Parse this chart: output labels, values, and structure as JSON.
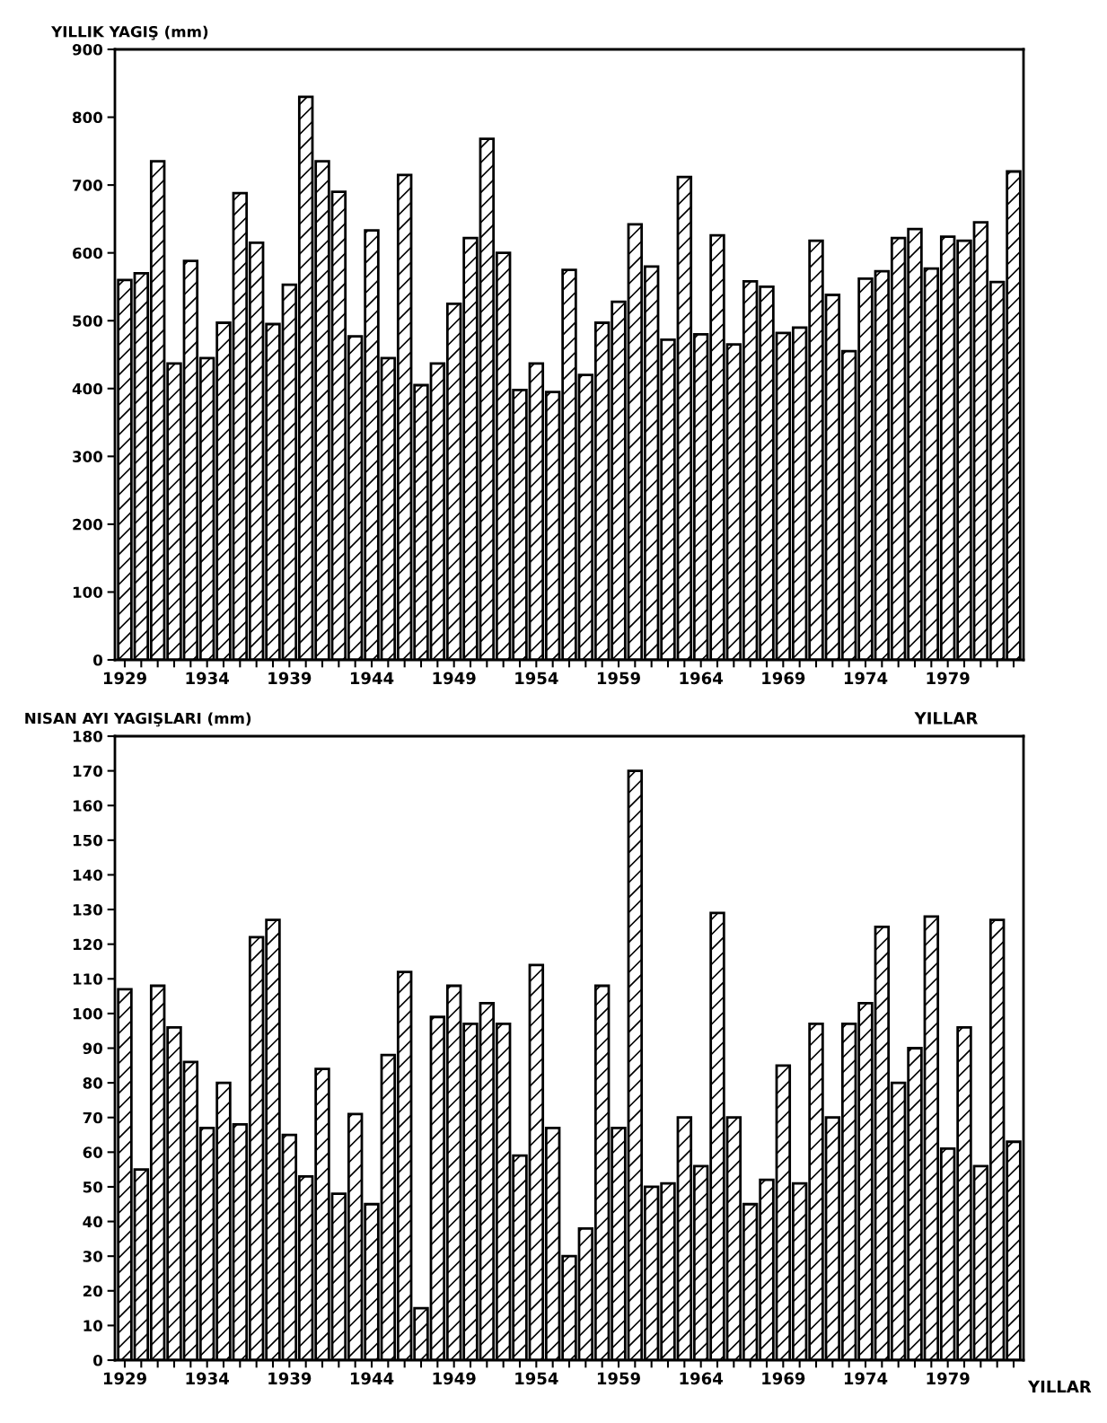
{
  "chart_data": [
    {
      "type": "bar",
      "ylabel": "YILLIK YAGIŞ (mm)",
      "xlabel": "YILLAR",
      "categories": [
        "1929",
        null,
        null,
        null,
        null,
        "1934",
        null,
        null,
        null,
        null,
        "1939",
        null,
        null,
        null,
        null,
        "1944",
        null,
        null,
        null,
        null,
        "1949",
        null,
        null,
        null,
        null,
        "1954",
        null,
        null,
        null,
        null,
        "1959",
        null,
        null,
        null,
        null,
        "1964",
        null,
        null,
        null,
        null,
        "1969",
        null,
        null,
        null,
        null,
        "1974",
        null,
        null,
        null,
        null,
        "1979",
        null,
        null,
        null,
        null
      ],
      "values": [
        560,
        570,
        735,
        437,
        588,
        445,
        497,
        688,
        615,
        495,
        553,
        830,
        735,
        690,
        477,
        633,
        445,
        715,
        405,
        437,
        525,
        622,
        768,
        600,
        398,
        437,
        395,
        575,
        420,
        497,
        528,
        642,
        580,
        472,
        712,
        480,
        626,
        465,
        558,
        550,
        482,
        490,
        618,
        538,
        455,
        562,
        573,
        622,
        635,
        577,
        624,
        618,
        645,
        557,
        720
      ],
      "color": "#000000",
      "ylim": [
        0,
        900
      ],
      "yticks": [
        0,
        100,
        200,
        300,
        400,
        500,
        600,
        700,
        800,
        900
      ],
      "grid": false
    },
    {
      "type": "bar",
      "ylabel": "NISAN AYI YAGIŞLARI (mm)",
      "xlabel": "YILLAR",
      "categories": [
        "1929",
        null,
        null,
        null,
        null,
        "1934",
        null,
        null,
        null,
        null,
        "1939",
        null,
        null,
        null,
        null,
        "1944",
        null,
        null,
        null,
        null,
        "1949",
        null,
        null,
        null,
        null,
        "1954",
        null,
        null,
        null,
        null,
        "1959",
        null,
        null,
        null,
        null,
        "1964",
        null,
        null,
        null,
        null,
        "1969",
        null,
        null,
        null,
        null,
        "1974",
        null,
        null,
        null,
        null,
        "1979",
        null,
        null,
        null,
        null
      ],
      "values": [
        107,
        55,
        108,
        96,
        86,
        67,
        80,
        68,
        122,
        127,
        65,
        53,
        84,
        48,
        71,
        45,
        88,
        112,
        15,
        99,
        108,
        97,
        103,
        97,
        59,
        114,
        67,
        30,
        38,
        108,
        67,
        170,
        50,
        51,
        70,
        56,
        129,
        70,
        45,
        52,
        85,
        51,
        97,
        70,
        97,
        103,
        125,
        80,
        90,
        128,
        61,
        96,
        56,
        127,
        63
      ],
      "color": "#000000",
      "ylim": [
        0,
        180
      ],
      "yticks": [
        0,
        10,
        20,
        30,
        40,
        50,
        60,
        70,
        80,
        90,
        100,
        110,
        120,
        130,
        140,
        150,
        160,
        170,
        180
      ],
      "grid": false
    }
  ]
}
